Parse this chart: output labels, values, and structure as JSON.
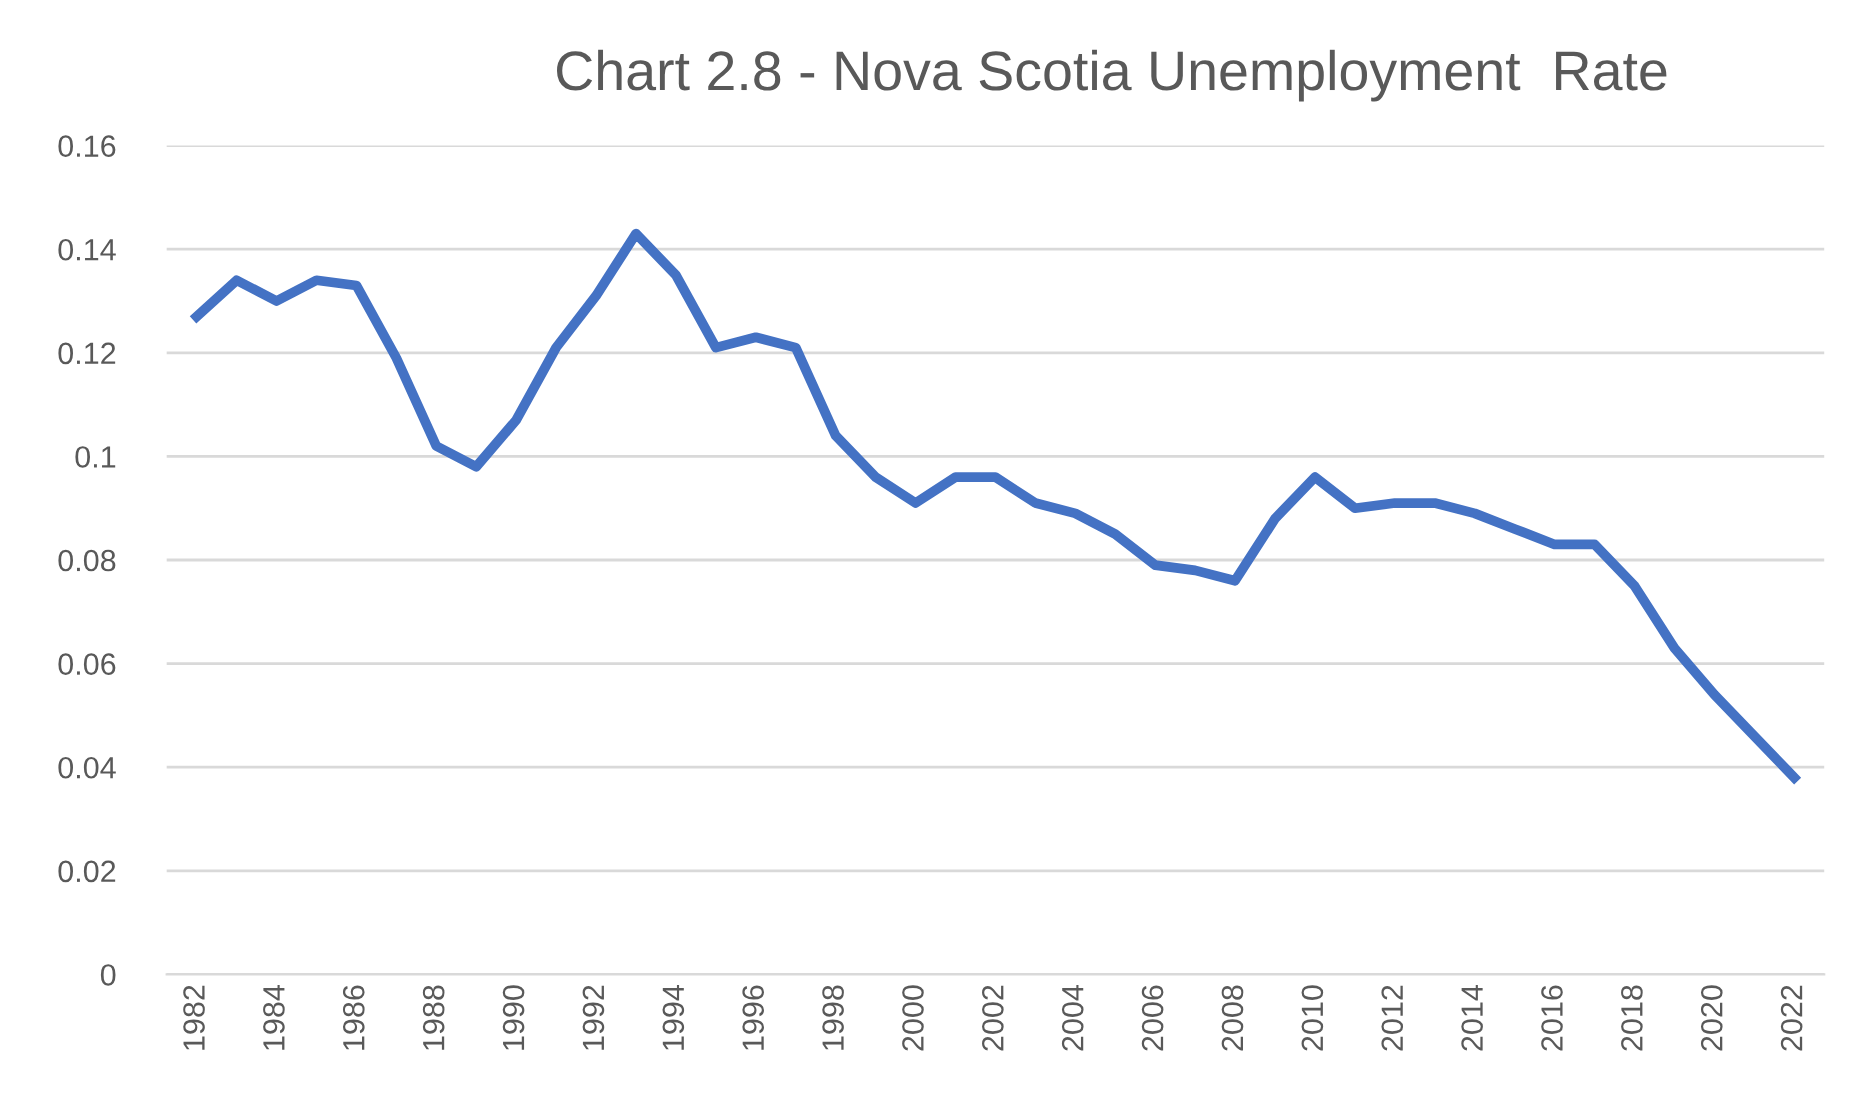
{
  "chart_data": {
    "type": "line",
    "title": "Chart 2.8 - Nova Scotia Unemployment  Rate",
    "categories": [
      "1982",
      null,
      "1984",
      null,
      "1986",
      null,
      "1988",
      null,
      "1990",
      null,
      "1992",
      null,
      "1994",
      null,
      "1996",
      null,
      "1998",
      null,
      "2000",
      null,
      "2002",
      null,
      "2004",
      null,
      "2006",
      null,
      "2008",
      null,
      "2010",
      null,
      "2012",
      null,
      "2014",
      null,
      "2016",
      null,
      "2018",
      null,
      "2020",
      null,
      "2022"
    ],
    "series": [
      {
        "color": "#4472c4",
        "values": [
          0.127,
          0.134,
          0.13,
          0.134,
          0.133,
          0.119,
          0.102,
          0.098,
          0.107,
          0.121,
          0.131,
          0.143,
          0.135,
          0.121,
          0.123,
          0.121,
          0.104,
          0.096,
          0.091,
          0.096,
          0.096,
          0.091,
          0.089,
          0.085,
          0.079,
          0.078,
          0.076,
          0.088,
          0.096,
          0.09,
          0.091,
          0.091,
          0.089,
          0.086,
          0.083,
          0.083,
          0.075,
          0.063,
          0.054,
          0.046,
          0.038
        ]
      }
    ],
    "ylim": [
      0,
      0.16
    ],
    "yticks": [
      0,
      0.02,
      0.04,
      0.06,
      0.08,
      0.1,
      0.12,
      0.14,
      0.16
    ],
    "grid": "y",
    "marker": "none",
    "line_style": "solid"
  }
}
